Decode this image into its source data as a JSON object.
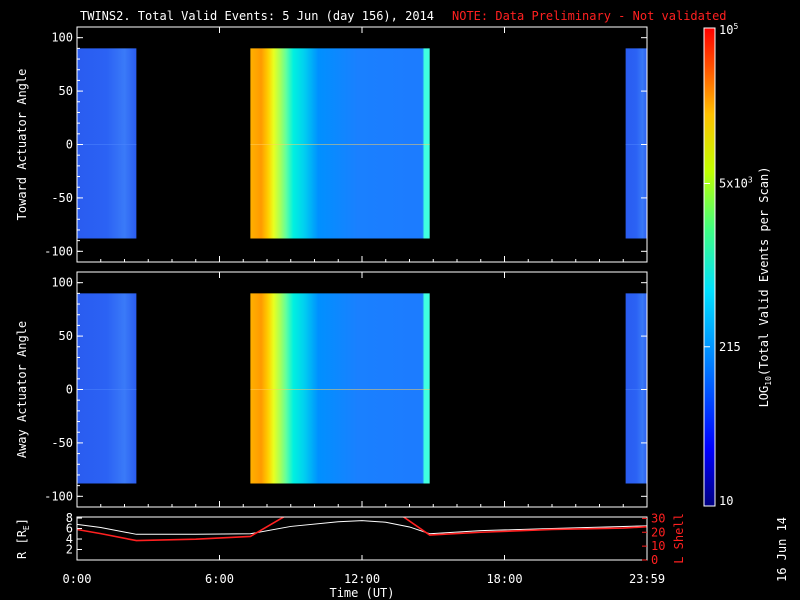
{
  "title": {
    "main": "TWINS2. Total Valid Events:  5 Jun (day 156), 2014",
    "note": "NOTE: Data Preliminary - Not validated"
  },
  "colors": {
    "background": "#000000",
    "text": "#ffffff",
    "note": "#ff2020",
    "r_line": "#ffffff",
    "l_shell_line": "#ff2020"
  },
  "chart_data": [
    {
      "type": "heatmap",
      "ylabel": "Toward Actuator Angle",
      "ylim": [
        -110,
        110
      ],
      "y_ticks": [
        "100",
        "50",
        "0",
        "-50",
        "-100"
      ],
      "y_tick_values": [
        100,
        50,
        0,
        -50,
        -100
      ],
      "data_y_range": [
        -88,
        90
      ],
      "segments": [
        {
          "start_hour": 0.0,
          "end_hour": 2.5,
          "level": "low"
        },
        {
          "start_hour": 7.3,
          "end_hour": 14.85,
          "level": "high"
        },
        {
          "start_hour": 23.1,
          "end_hour": 24.0,
          "level": "low"
        }
      ]
    },
    {
      "type": "heatmap",
      "ylabel": "Away Actuator Angle",
      "ylim": [
        -110,
        110
      ],
      "y_ticks": [
        "100",
        "50",
        "0",
        "-50",
        "-100"
      ],
      "y_tick_values": [
        100,
        50,
        0,
        -50,
        -100
      ],
      "data_y_range": [
        -88,
        90
      ],
      "segments": [
        {
          "start_hour": 0.0,
          "end_hour": 2.5,
          "level": "low"
        },
        {
          "start_hour": 7.3,
          "end_hour": 14.85,
          "level": "high"
        },
        {
          "start_hour": 23.1,
          "end_hour": 24.0,
          "level": "low"
        }
      ]
    },
    {
      "type": "line",
      "ylabel_left": "R [R",
      "ylabel_left_sub": "E",
      "ylabel_left_end": "]",
      "ylabel_right": "L Shell",
      "xlabel": "Time (UT)",
      "x_ticks": [
        "0:00",
        "6:00",
        "12:00",
        "18:00",
        "23:59"
      ],
      "x_tick_values": [
        0,
        6,
        12,
        18,
        24
      ],
      "left_ticks": [
        "8",
        "6",
        "4",
        "2"
      ],
      "left_tick_values": [
        8,
        6,
        4,
        2
      ],
      "ylim_left": [
        0,
        8.2
      ],
      "right_ticks": [
        "30",
        "20",
        "10",
        "0"
      ],
      "right_tick_values": [
        30,
        20,
        10,
        0
      ],
      "ylim_right": [
        0,
        31
      ],
      "series": [
        {
          "name": "R",
          "axis": "left",
          "x": [
            0,
            1,
            2.5,
            5,
            7.3,
            9,
            11,
            12,
            13,
            14,
            14.85,
            17,
            20,
            23,
            24
          ],
          "y": [
            6.8,
            6.2,
            4.9,
            4.9,
            5.0,
            6.4,
            7.3,
            7.5,
            7.2,
            6.3,
            5.0,
            5.6,
            6.0,
            6.4,
            6.5
          ]
        },
        {
          "name": "L Shell",
          "axis": "right",
          "x": [
            0,
            1,
            2.5,
            5,
            7.3,
            9
          ],
          "y": [
            22,
            19,
            14,
            15,
            17,
            34
          ]
        },
        {
          "name": "L Shell",
          "axis": "right",
          "x": [
            13.5,
            14.85,
            17,
            20,
            23,
            24
          ],
          "y": [
            34,
            18,
            20,
            22,
            23,
            24
          ]
        }
      ]
    }
  ],
  "colorbar": {
    "label_prefix": "LOG",
    "label_sub": "10",
    "label_rest": "(Total Valid  Events per Scan)",
    "ticks": [
      {
        "base": "10",
        "exp": "5",
        "value": 100000
      },
      {
        "base": "5x10",
        "exp": "3",
        "value": 5000
      },
      {
        "base": "215",
        "exp": "",
        "value": 215
      },
      {
        "base": "10",
        "exp": "",
        "value": 10
      }
    ],
    "range": [
      10,
      100000
    ]
  },
  "footer_date": "16 Jun 14"
}
